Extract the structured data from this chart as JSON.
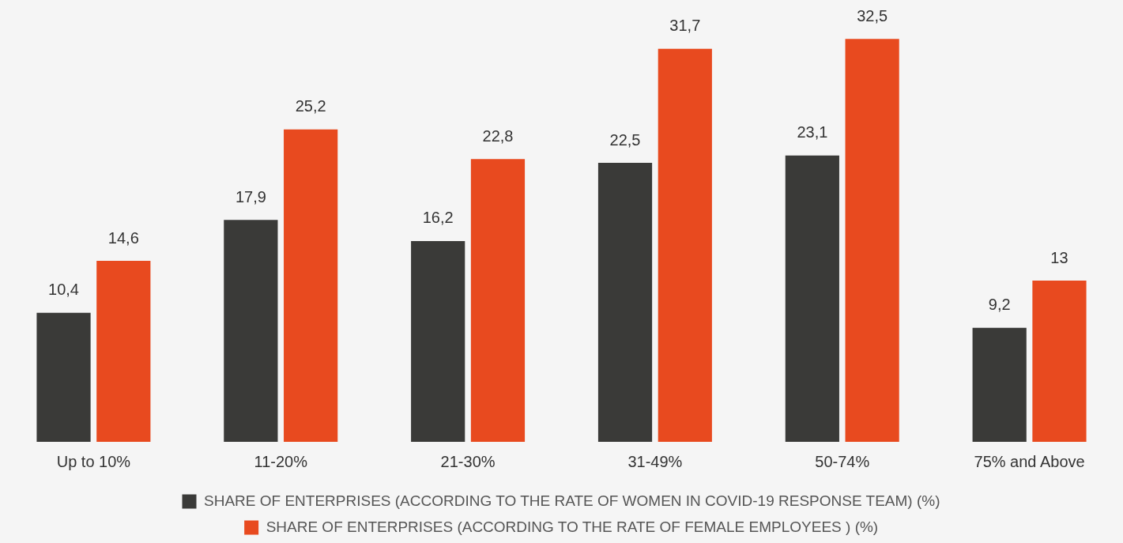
{
  "chart_data": {
    "type": "bar",
    "categories": [
      "Up to 10%",
      "11-20%",
      "21-30%",
      "31-49%",
      "50-74%",
      "75% and Above"
    ],
    "series": [
      {
        "name": "SHARE OF ENTERPRISES (ACCORDING TO THE RATE OF WOMEN IN COVID-19 RESPONSE TEAM) (%)",
        "color": "#3a3a38",
        "values": [
          10.4,
          17.9,
          16.2,
          22.5,
          23.1,
          9.2
        ],
        "value_labels": [
          "10,4",
          "17,9",
          "16,2",
          "22,5",
          "23,1",
          "9,2"
        ]
      },
      {
        "name": "SHARE OF ENTERPRISES (ACCORDING TO THE RATE OF FEMALE EMPLOYEES ) (%)",
        "color": "#e84a1f",
        "values": [
          14.6,
          25.2,
          22.8,
          31.7,
          32.5,
          13
        ],
        "value_labels": [
          "14,6",
          "25,2",
          "22,8",
          "31,7",
          "32,5",
          "13"
        ]
      }
    ],
    "grid": false,
    "legend": "bottom",
    "tick_labels": "x"
  }
}
